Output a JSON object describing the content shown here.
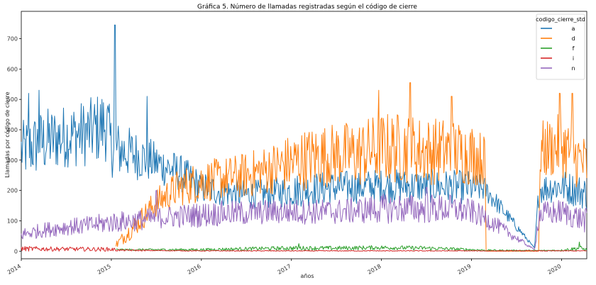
{
  "chart_data": {
    "type": "line",
    "title": "Gráfica 5. Número de llamadas registradas según el código de cierre",
    "xlabel": "años",
    "ylabel": "Llamadas por código de cierre",
    "xlim": [
      2014.0,
      2020.28
    ],
    "ylim": [
      -25,
      790
    ],
    "x_ticks": [
      2014,
      2015,
      2016,
      2017,
      2018,
      2019,
      2020
    ],
    "x_tick_labels": [
      "2014",
      "2015",
      "2016",
      "2017",
      "2018",
      "2019",
      "2020"
    ],
    "y_ticks": [
      0,
      100,
      200,
      300,
      400,
      500,
      600,
      700
    ],
    "y_tick_labels": [
      "0",
      "100",
      "200",
      "300",
      "400",
      "500",
      "600",
      "700"
    ],
    "grid": false,
    "legend": {
      "title": "codigo_cierre_std",
      "placement": "top-right"
    },
    "colors": {
      "a": "#1f77b4",
      "d": "#ff7f0e",
      "f": "#2ca02c",
      "i": "#d62728",
      "n": "#9467bd"
    },
    "series": [
      {
        "name": "a",
        "x": [
          2014.0,
          2014.25,
          2014.5,
          2014.75,
          2014.95,
          2015.0,
          2015.25,
          2015.5,
          2015.75,
          2016.0,
          2016.25,
          2016.5,
          2016.75,
          2017.0,
          2017.5,
          2018.0,
          2018.5,
          2019.0,
          2019.15,
          2019.7,
          2019.75,
          2020.0,
          2020.28
        ],
        "values": [
          330,
          360,
          380,
          390,
          420,
          340,
          320,
          290,
          260,
          210,
          195,
          185,
          190,
          200,
          210,
          215,
          215,
          210,
          205,
          10,
          205,
          215,
          190
        ],
        "amplitude": [
          70,
          80,
          75,
          80,
          90,
          70,
          60,
          50,
          45,
          40,
          35,
          35,
          35,
          40,
          40,
          40,
          40,
          40,
          30,
          0,
          35,
          40,
          40
        ],
        "spikes": [
          [
            2015.04,
            745
          ],
          [
            2014.08,
            520
          ],
          [
            2014.2,
            530
          ],
          [
            2015.4,
            510
          ]
        ]
      },
      {
        "name": "d",
        "x": [
          2014.0,
          2015.0,
          2015.05,
          2015.25,
          2015.5,
          2015.75,
          2016.0,
          2016.25,
          2016.5,
          2016.75,
          2017.0,
          2017.25,
          2017.5,
          2017.75,
          2018.0,
          2018.25,
          2018.5,
          2018.75,
          2019.0,
          2019.15,
          2019.16,
          2019.75,
          2019.76,
          2020.0,
          2020.28
        ],
        "values": [
          null,
          null,
          20,
          80,
          160,
          210,
          230,
          240,
          250,
          270,
          290,
          310,
          320,
          320,
          340,
          340,
          330,
          330,
          320,
          300,
          0,
          0,
          330,
          350,
          280
        ],
        "amplitude": [
          0,
          0,
          10,
          25,
          35,
          45,
          50,
          50,
          55,
          60,
          70,
          75,
          75,
          80,
          85,
          85,
          80,
          80,
          75,
          60,
          0,
          0,
          70,
          75,
          70
        ],
        "spikes": [
          [
            2018.32,
            555
          ],
          [
            2017.97,
            530
          ],
          [
            2020.12,
            520
          ],
          [
            2019.98,
            520
          ],
          [
            2018.78,
            510
          ]
        ]
      },
      {
        "name": "f",
        "x": [
          2014.0,
          2015.0,
          2015.05,
          2016.0,
          2016.5,
          2017.0,
          2017.5,
          2018.0,
          2018.5,
          2019.0,
          2019.15,
          2019.75,
          2020.0,
          2020.2,
          2020.28
        ],
        "values": [
          null,
          null,
          5,
          5,
          8,
          10,
          10,
          12,
          10,
          5,
          3,
          2,
          3,
          10,
          5
        ],
        "amplitude": [
          0,
          0,
          2,
          3,
          4,
          5,
          5,
          5,
          5,
          3,
          2,
          1,
          2,
          6,
          3
        ],
        "spikes": [
          [
            2017.08,
            25
          ],
          [
            2020.2,
            30
          ]
        ]
      },
      {
        "name": "i",
        "x": [
          2014.0,
          2014.5,
          2015.0,
          2015.1,
          2015.5,
          2016.0,
          2017.0,
          2018.0,
          2019.0,
          2020.0,
          2020.28
        ],
        "values": [
          8,
          7,
          6,
          3,
          2,
          1,
          1,
          1,
          1,
          1,
          1
        ],
        "amplitude": [
          6,
          5,
          5,
          2,
          1,
          1,
          1,
          1,
          1,
          1,
          1
        ],
        "spikes": []
      },
      {
        "name": "n",
        "x": [
          2014.0,
          2014.25,
          2014.5,
          2014.75,
          2015.0,
          2015.25,
          2015.5,
          2015.75,
          2016.0,
          2016.25,
          2016.5,
          2016.75,
          2017.0,
          2017.25,
          2017.5,
          2017.75,
          2018.0,
          2018.25,
          2018.5,
          2018.75,
          2019.0,
          2019.15,
          2019.7,
          2019.75,
          2020.0,
          2020.28
        ],
        "values": [
          55,
          70,
          80,
          85,
          95,
          100,
          110,
          115,
          120,
          125,
          125,
          130,
          130,
          130,
          130,
          135,
          140,
          140,
          140,
          140,
          130,
          110,
          5,
          120,
          130,
          100
        ],
        "amplitude": [
          15,
          18,
          20,
          22,
          25,
          25,
          25,
          28,
          30,
          30,
          30,
          30,
          30,
          30,
          30,
          32,
          35,
          35,
          35,
          35,
          30,
          25,
          0,
          30,
          30,
          30
        ],
        "spikes": [
          [
            2015.5,
            200
          ],
          [
            2018.5,
            210
          ]
        ]
      }
    ]
  }
}
